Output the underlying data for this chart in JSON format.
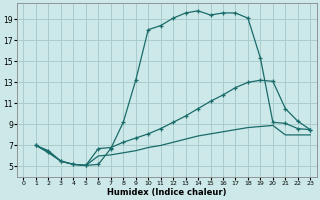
{
  "xlabel": "Humidex (Indice chaleur)",
  "bg_color": "#cce8e8",
  "grid_color": "#aacccc",
  "line_color": "#1a6b6b",
  "xlim": [
    -0.5,
    23.5
  ],
  "ylim": [
    4.0,
    20.5
  ],
  "xticks": [
    0,
    1,
    2,
    3,
    4,
    5,
    6,
    7,
    8,
    9,
    10,
    11,
    12,
    13,
    14,
    15,
    16,
    17,
    18,
    19,
    20,
    21,
    22,
    23
  ],
  "yticks": [
    5,
    7,
    9,
    11,
    13,
    15,
    17,
    19
  ],
  "curve1_x": [
    1,
    2,
    3,
    4,
    5,
    6,
    7,
    8,
    9,
    10,
    11,
    12,
    13,
    14,
    15,
    16,
    17,
    18,
    19,
    20,
    21,
    22,
    23
  ],
  "curve1_y": [
    7.0,
    6.5,
    5.5,
    5.2,
    5.1,
    5.2,
    6.7,
    9.2,
    13.2,
    18.0,
    18.4,
    19.1,
    19.6,
    19.8,
    19.4,
    19.6,
    19.6,
    19.1,
    15.3,
    9.2,
    9.1,
    8.6,
    8.5
  ],
  "curve2_x": [
    1,
    2,
    3,
    4,
    5,
    6,
    7,
    8,
    9,
    10,
    11,
    12,
    13,
    14,
    15,
    16,
    17,
    18,
    19,
    20,
    21,
    22,
    23
  ],
  "curve2_y": [
    7.0,
    6.4,
    5.5,
    5.2,
    5.1,
    6.7,
    6.8,
    7.3,
    7.7,
    8.1,
    8.6,
    9.2,
    9.8,
    10.5,
    11.2,
    11.8,
    12.5,
    13.0,
    13.2,
    13.1,
    10.5,
    9.3,
    8.5
  ],
  "curve3_x": [
    1,
    2,
    3,
    4,
    5,
    6,
    7,
    8,
    9,
    10,
    11,
    12,
    13,
    14,
    15,
    16,
    17,
    18,
    19,
    20,
    21,
    22,
    23
  ],
  "curve3_y": [
    7.0,
    6.3,
    5.5,
    5.2,
    5.1,
    6.0,
    6.1,
    6.3,
    6.5,
    6.8,
    7.0,
    7.3,
    7.6,
    7.9,
    8.1,
    8.3,
    8.5,
    8.7,
    8.8,
    8.9,
    8.0,
    8.0,
    8.0
  ]
}
